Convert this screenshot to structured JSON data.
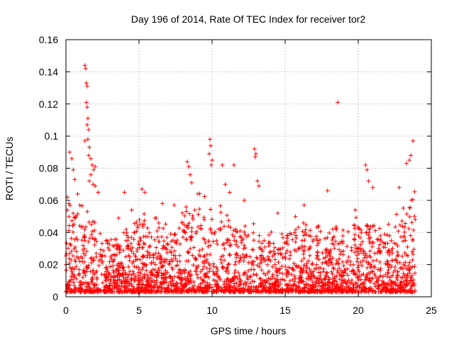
{
  "chart_data": {
    "type": "scatter",
    "title": "Day 196 of 2014, Rate Of TEC Index for receiver tor2",
    "xlabel": "GPS time / hours",
    "ylabel": "ROTI / TECUs",
    "xlim": [
      0,
      25
    ],
    "ylim": [
      0,
      0.16
    ],
    "grid": true,
    "marker": "+",
    "color": "#ff0000",
    "x_ticks": [
      "0",
      "5",
      "10",
      "15",
      "20",
      "25"
    ],
    "y_ticks": [
      "0",
      "0.02",
      "0.04",
      "0.06",
      "0.08",
      "0.1",
      "0.12",
      "0.14",
      "0.16"
    ],
    "series": [
      {
        "name": "ROTI",
        "points": [
          [
            1.3,
            0.144
          ],
          [
            1.35,
            0.142
          ],
          [
            1.4,
            0.133
          ],
          [
            1.45,
            0.131
          ],
          [
            1.4,
            0.121
          ],
          [
            1.45,
            0.118
          ],
          [
            1.5,
            0.111
          ],
          [
            1.45,
            0.107
          ],
          [
            1.55,
            0.104
          ],
          [
            1.5,
            0.098
          ],
          [
            1.3,
            0.097
          ],
          [
            1.6,
            0.093
          ],
          [
            1.55,
            0.088
          ],
          [
            1.7,
            0.086
          ],
          [
            1.8,
            0.082
          ],
          [
            1.9,
            0.079
          ],
          [
            1.7,
            0.076
          ],
          [
            1.85,
            0.07
          ],
          [
            2.0,
            0.069
          ],
          [
            1.6,
            0.072
          ],
          [
            0.25,
            0.09
          ],
          [
            0.4,
            0.086
          ],
          [
            0.5,
            0.079
          ],
          [
            0.1,
            0.062
          ],
          [
            0.2,
            0.058
          ],
          [
            0.6,
            0.073
          ],
          [
            0.8,
            0.064
          ],
          [
            2.0,
            0.081
          ],
          [
            2.2,
            0.065
          ],
          [
            18.6,
            0.121
          ],
          [
            23.75,
            0.097
          ],
          [
            23.6,
            0.088
          ],
          [
            23.5,
            0.085
          ],
          [
            23.3,
            0.083
          ],
          [
            9.85,
            0.098
          ],
          [
            9.9,
            0.094
          ],
          [
            9.8,
            0.089
          ],
          [
            10.0,
            0.085
          ],
          [
            9.95,
            0.082
          ],
          [
            12.9,
            0.092
          ],
          [
            13.0,
            0.089
          ],
          [
            12.95,
            0.087
          ],
          [
            13.1,
            0.072
          ],
          [
            13.2,
            0.069
          ],
          [
            8.3,
            0.084
          ],
          [
            8.4,
            0.081
          ],
          [
            8.5,
            0.076
          ],
          [
            8.6,
            0.071
          ],
          [
            10.7,
            0.082
          ],
          [
            10.9,
            0.07
          ],
          [
            11.2,
            0.065
          ],
          [
            11.5,
            0.082
          ],
          [
            20.5,
            0.082
          ],
          [
            20.6,
            0.079
          ],
          [
            20.7,
            0.072
          ],
          [
            21.0,
            0.068
          ],
          [
            4.0,
            0.065
          ],
          [
            5.2,
            0.067
          ],
          [
            5.4,
            0.065
          ],
          [
            6.6,
            0.058
          ],
          [
            7.4,
            0.057
          ],
          [
            14.5,
            0.052
          ],
          [
            16.3,
            0.057
          ],
          [
            17.9,
            0.066
          ],
          [
            19.8,
            0.054
          ],
          [
            22.8,
            0.068
          ],
          [
            3.6,
            0.049
          ],
          [
            4.5,
            0.054
          ],
          [
            6.1,
            0.049
          ],
          [
            12.2,
            0.06
          ],
          [
            15.7,
            0.05
          ]
        ]
      }
    ],
    "density_profile": [
      [
        0.5,
        0.055
      ],
      [
        1.5,
        0.05
      ],
      [
        2.5,
        0.04
      ],
      [
        3.5,
        0.034
      ],
      [
        4.5,
        0.045
      ],
      [
        5.5,
        0.05
      ],
      [
        6.5,
        0.042
      ],
      [
        7.5,
        0.045
      ],
      [
        8.5,
        0.055
      ],
      [
        9.5,
        0.06
      ],
      [
        10.5,
        0.055
      ],
      [
        11.5,
        0.04
      ],
      [
        12.5,
        0.045
      ],
      [
        13.5,
        0.04
      ],
      [
        14.5,
        0.038
      ],
      [
        15.5,
        0.042
      ],
      [
        16.5,
        0.045
      ],
      [
        17.5,
        0.04
      ],
      [
        18.5,
        0.045
      ],
      [
        19.5,
        0.04
      ],
      [
        20.5,
        0.05
      ],
      [
        21.5,
        0.042
      ],
      [
        22.5,
        0.045
      ],
      [
        23.5,
        0.06
      ]
    ],
    "x_data_end": 23.9
  }
}
